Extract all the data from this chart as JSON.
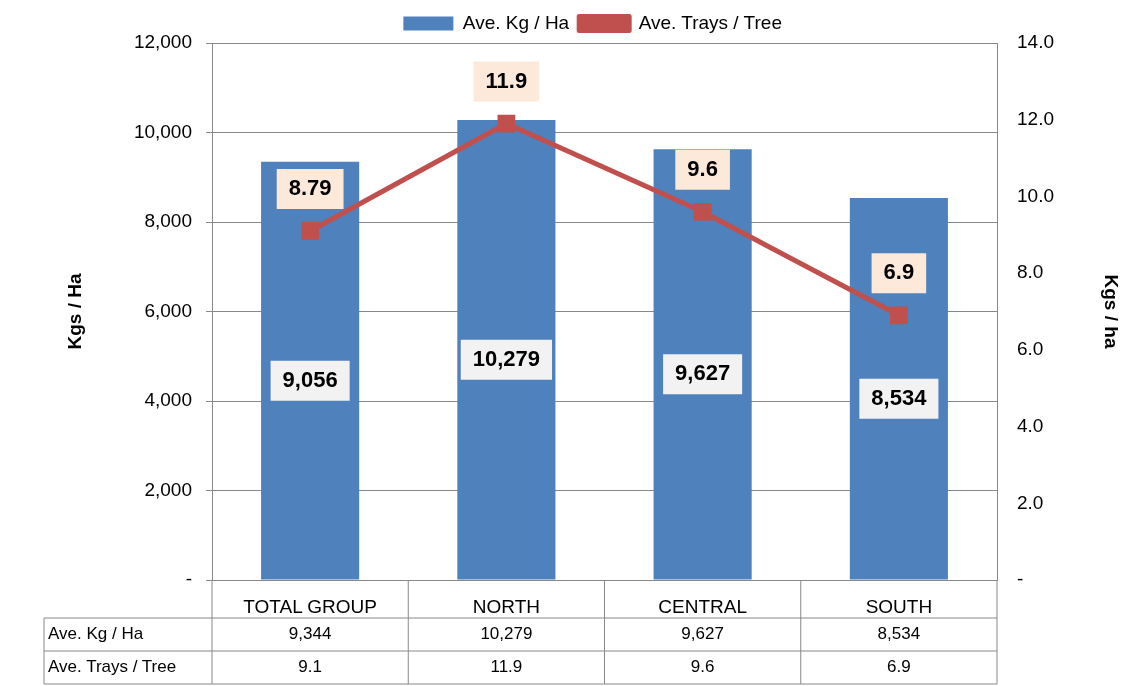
{
  "chart_data": {
    "type": "bar",
    "categories": [
      "TOTAL GROUP",
      "NORTH",
      "CENTRAL",
      "SOUTH"
    ],
    "series": [
      {
        "name": "Ave. Kg / Ha",
        "color": "#4f81bd",
        "values": [
          9344,
          10279,
          9627,
          8534
        ],
        "value_labels": [
          "9,344",
          "10,279",
          "9,627",
          "8,534"
        ]
      },
      {
        "name": "Ave. Trays / Tree",
        "type": "line",
        "axis": "y2",
        "color": "#c0504d",
        "values": [
          9.1,
          11.9,
          9.6,
          6.9
        ],
        "value_labels": [
          "9.1",
          "11.9",
          "9.6",
          "6.9"
        ]
      }
    ],
    "annotations": [
      "9,056",
      "10,279",
      "9,627",
      "8,534",
      "8.79",
      "11.9",
      "9.6",
      "6.9"
    ],
    "ylabel": "Kgs / Ha",
    "y2label": "Kgs / ha",
    "ylim": [
      0,
      12000
    ],
    "yticks": [
      {
        "value": 0,
        "label": "-"
      },
      {
        "value": 2000,
        "label": "2,000"
      },
      {
        "value": 4000,
        "label": "4,000"
      },
      {
        "value": 6000,
        "label": "6,000"
      },
      {
        "value": 8000,
        "label": "8,000"
      },
      {
        "value": 10000,
        "label": "10,000"
      },
      {
        "value": 12000,
        "label": "12,000"
      }
    ],
    "y2lim": [
      0,
      14
    ],
    "y2ticks": [
      {
        "value": 0,
        "label": "-"
      },
      {
        "value": 2,
        "label": "2.0"
      },
      {
        "value": 4,
        "label": "4.0"
      },
      {
        "value": 6,
        "label": "6.0"
      },
      {
        "value": 8,
        "label": "8.0"
      },
      {
        "value": 10,
        "label": "10.0"
      },
      {
        "value": 12,
        "label": "12.0"
      },
      {
        "value": 14,
        "label": "14.0"
      }
    ],
    "grid": "y",
    "legend": "top",
    "marker": "square",
    "line_style": "solid"
  }
}
